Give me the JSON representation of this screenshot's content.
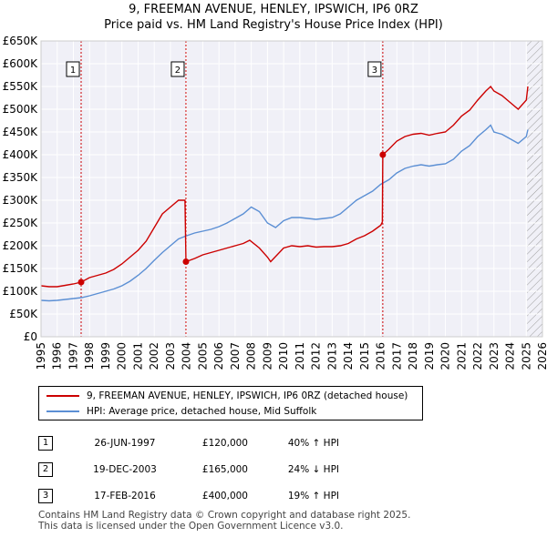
{
  "title_line1": "9, FREEMAN AVENUE, HENLEY, IPSWICH, IP6 0RZ",
  "title_line2": "Price paid vs. HM Land Registry's House Price Index (HPI)",
  "chart_data": {
    "type": "line",
    "x_range": [
      1995,
      2026
    ],
    "ylim": [
      0,
      650000
    ],
    "y_ticks": [
      0,
      50000,
      100000,
      150000,
      200000,
      250000,
      300000,
      350000,
      400000,
      450000,
      500000,
      550000,
      600000,
      650000
    ],
    "y_tick_labels": [
      "£0",
      "£50K",
      "£100K",
      "£150K",
      "£200K",
      "£250K",
      "£300K",
      "£350K",
      "£400K",
      "£450K",
      "£500K",
      "£550K",
      "£600K",
      "£650K"
    ],
    "x_ticks": [
      1995,
      1996,
      1997,
      1998,
      1999,
      2000,
      2001,
      2002,
      2003,
      2004,
      2005,
      2006,
      2007,
      2008,
      2009,
      2010,
      2011,
      2012,
      2013,
      2014,
      2015,
      2016,
      2017,
      2018,
      2019,
      2020,
      2021,
      2022,
      2023,
      2024,
      2025,
      2026
    ],
    "x_tick_labels": [
      "1995",
      "1996",
      "1997",
      "1998",
      "1999",
      "2000",
      "2001",
      "2002",
      "2003",
      "2004",
      "2005",
      "2006",
      "2007",
      "2008",
      "2009",
      "2010",
      "2011",
      "2012",
      "2013",
      "2014",
      "2015",
      "2016",
      "2017",
      "2018",
      "2019",
      "2020",
      "2021",
      "2022",
      "2023",
      "2024",
      "2025",
      "2026"
    ],
    "hatch_from": 2025.05,
    "grid": true,
    "series": [
      {
        "name": "9, FREEMAN AVENUE, HENLEY, IPSWICH, IP6 0RZ (detached house)",
        "color": "#cc0000",
        "x": [
          1995.0,
          1995.5,
          1996.0,
          1996.5,
          1997.0,
          1997.48,
          1998.0,
          1998.5,
          1999.0,
          1999.5,
          2000.0,
          2000.5,
          2001.0,
          2001.5,
          2002.0,
          2002.5,
          2003.0,
          2003.5,
          2003.9,
          2003.96,
          2004.5,
          2005.0,
          2005.5,
          2006.0,
          2006.5,
          2007.0,
          2007.5,
          2007.9,
          2008.5,
          2009.0,
          2009.2,
          2009.6,
          2010.0,
          2010.5,
          2011.0,
          2011.5,
          2012.0,
          2012.5,
          2013.0,
          2013.5,
          2014.0,
          2014.5,
          2015.0,
          2015.5,
          2016.0,
          2016.1,
          2016.13,
          2016.5,
          2017.0,
          2017.5,
          2018.0,
          2018.5,
          2019.0,
          2019.5,
          2020.0,
          2020.5,
          2021.0,
          2021.5,
          2022.0,
          2022.5,
          2022.8,
          2023.0,
          2023.5,
          2024.0,
          2024.5,
          2025.0,
          2025.1
        ],
        "values": [
          112000,
          110000,
          110000,
          113000,
          116000,
          120000,
          130000,
          135000,
          140000,
          148000,
          160000,
          175000,
          190000,
          210000,
          240000,
          270000,
          285000,
          300000,
          300000,
          165000,
          172000,
          180000,
          185000,
          190000,
          195000,
          200000,
          205000,
          212000,
          195000,
          175000,
          165000,
          180000,
          195000,
          200000,
          198000,
          200000,
          197000,
          198000,
          198000,
          200000,
          205000,
          215000,
          222000,
          232000,
          245000,
          252000,
          400000,
          412000,
          430000,
          440000,
          445000,
          447000,
          443000,
          447000,
          450000,
          465000,
          485000,
          498000,
          520000,
          540000,
          550000,
          540000,
          530000,
          515000,
          500000,
          520000,
          550000
        ]
      },
      {
        "name": "HPI: Average price, detached house, Mid Suffolk",
        "color": "#5b8fd4",
        "x": [
          1995.0,
          1995.5,
          1996.0,
          1996.5,
          1997.0,
          1997.5,
          1998.0,
          1998.5,
          1999.0,
          1999.5,
          2000.0,
          2000.5,
          2001.0,
          2001.5,
          2002.0,
          2002.5,
          2003.0,
          2003.5,
          2004.0,
          2004.5,
          2005.0,
          2005.5,
          2006.0,
          2006.5,
          2007.0,
          2007.5,
          2008.0,
          2008.5,
          2009.0,
          2009.5,
          2010.0,
          2010.5,
          2011.0,
          2011.5,
          2012.0,
          2012.5,
          2013.0,
          2013.5,
          2014.0,
          2014.5,
          2015.0,
          2015.5,
          2016.0,
          2016.5,
          2017.0,
          2017.5,
          2018.0,
          2018.5,
          2019.0,
          2019.5,
          2020.0,
          2020.5,
          2021.0,
          2021.5,
          2022.0,
          2022.5,
          2022.8,
          2023.0,
          2023.5,
          2024.0,
          2024.5,
          2025.0,
          2025.1
        ],
        "values": [
          80000,
          79000,
          80000,
          82000,
          84000,
          86000,
          90000,
          95000,
          100000,
          105000,
          112000,
          122000,
          135000,
          150000,
          168000,
          185000,
          200000,
          215000,
          222000,
          228000,
          232000,
          236000,
          242000,
          250000,
          260000,
          270000,
          285000,
          275000,
          250000,
          240000,
          255000,
          262000,
          262000,
          260000,
          258000,
          260000,
          262000,
          270000,
          285000,
          300000,
          310000,
          320000,
          335000,
          345000,
          360000,
          370000,
          375000,
          378000,
          375000,
          378000,
          380000,
          390000,
          408000,
          420000,
          440000,
          455000,
          465000,
          450000,
          445000,
          435000,
          425000,
          440000,
          455000
        ]
      }
    ],
    "sales": [
      {
        "label": "1",
        "x": 1997.48,
        "value": 120000
      },
      {
        "label": "2",
        "x": 2003.96,
        "value": 165000
      },
      {
        "label": "3",
        "x": 2016.13,
        "value": 400000
      }
    ]
  },
  "legend": {
    "red_label": "9, FREEMAN AVENUE, HENLEY, IPSWICH, IP6 0RZ (detached house)",
    "blue_label": "HPI: Average price, detached house, Mid Suffolk"
  },
  "sales_table": [
    {
      "num": "1",
      "date": "26-JUN-1997",
      "price": "£120,000",
      "hpi": "40% ↑ HPI"
    },
    {
      "num": "2",
      "date": "19-DEC-2003",
      "price": "£165,000",
      "hpi": "24% ↓ HPI"
    },
    {
      "num": "3",
      "date": "17-FEB-2016",
      "price": "£400,000",
      "hpi": "19% ↑ HPI"
    }
  ],
  "footer": {
    "line1": "Contains HM Land Registry data © Crown copyright and database right 2025.",
    "line2": "This data is licensed under the Open Government Licence v3.0."
  }
}
